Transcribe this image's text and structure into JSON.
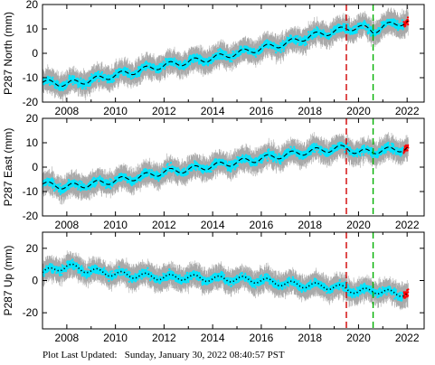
{
  "footer": {
    "label": "Plot Last Updated:",
    "timestamp": "Sunday, January 30, 2022 08:40:57 PST"
  },
  "colors": {
    "errorbar": "#a9a9a9",
    "data": "#00e5ff",
    "recent": "#ff0000",
    "model": "#000000",
    "event_red": "#d00000",
    "event_green": "#00b000"
  },
  "chart_data": [
    {
      "type": "scatter",
      "ylabel": "P287 North (mm)",
      "xlim": [
        2007.0,
        2022.7
      ],
      "ylim": [
        -20,
        20
      ],
      "xticks": [
        2008,
        2010,
        2012,
        2014,
        2016,
        2018,
        2020,
        2022
      ],
      "yticks": [
        -20,
        -10,
        0,
        10,
        20
      ],
      "model_line": "dashed",
      "event_lines": [
        {
          "x": 2019.5,
          "color": "red",
          "style": "dashed"
        },
        {
          "x": 2020.6,
          "color": "green",
          "style": "dashed"
        }
      ],
      "series": [
        {
          "x": [
            2007.0,
            2008.0,
            2009.0,
            2010.0,
            2011.0,
            2012.0,
            2013.0,
            2014.0,
            2015.0,
            2016.0,
            2017.0,
            2018.0,
            2019.0,
            2019.5,
            2020.0,
            2020.6,
            2021.0,
            2021.5,
            2022.0
          ],
          "y": [
            -12,
            -12.5,
            -11,
            -9,
            -7,
            -5,
            -3.5,
            -2,
            0,
            2,
            4,
            7,
            9,
            10,
            11,
            9,
            11,
            12,
            13
          ]
        }
      ]
    },
    {
      "type": "scatter",
      "ylabel": "P287 East (mm)",
      "xlim": [
        2007.0,
        2022.7
      ],
      "ylim": [
        -20,
        20
      ],
      "xticks": [
        2008,
        2010,
        2012,
        2014,
        2016,
        2018,
        2020,
        2022
      ],
      "yticks": [
        -20,
        -10,
        0,
        10,
        20
      ],
      "model_line": "dashed",
      "event_lines": [
        {
          "x": 2019.5,
          "color": "red",
          "style": "dashed"
        },
        {
          "x": 2020.6,
          "color": "green",
          "style": "dashed"
        }
      ],
      "series": [
        {
          "x": [
            2007.0,
            2008.0,
            2009.0,
            2010.0,
            2011.0,
            2012.0,
            2013.0,
            2014.0,
            2015.0,
            2016.0,
            2017.0,
            2018.0,
            2019.0,
            2019.5,
            2020.0,
            2020.6,
            2021.0,
            2021.5,
            2022.0
          ],
          "y": [
            -7,
            -8,
            -7,
            -5.5,
            -4,
            -2,
            -1,
            0.5,
            2,
            3.5,
            5,
            6.5,
            7.5,
            8,
            6,
            6.5,
            7,
            7,
            8
          ]
        }
      ]
    },
    {
      "type": "scatter",
      "ylabel": "P287 Up (mm)",
      "xlim": [
        2007.0,
        2022.7
      ],
      "ylim": [
        -30,
        30
      ],
      "xticks": [
        2008,
        2010,
        2012,
        2014,
        2016,
        2018,
        2020,
        2022
      ],
      "yticks": [
        -20,
        0,
        20
      ],
      "model_line": "dotted",
      "event_lines": [
        {
          "x": 2019.5,
          "color": "red",
          "style": "dashed"
        },
        {
          "x": 2020.6,
          "color": "green",
          "style": "dashed"
        }
      ],
      "series": [
        {
          "x": [
            2007.0,
            2008.0,
            2009.0,
            2010.0,
            2011.0,
            2012.0,
            2013.0,
            2014.0,
            2015.0,
            2016.0,
            2017.0,
            2018.0,
            2019.0,
            2019.5,
            2020.0,
            2020.6,
            2021.0,
            2021.5,
            2022.0
          ],
          "y": [
            5,
            9,
            6,
            4,
            3,
            2,
            2,
            1,
            1,
            0,
            -2,
            -3,
            -4,
            -5,
            -7,
            -6,
            -7,
            -8,
            -8
          ]
        }
      ]
    }
  ]
}
